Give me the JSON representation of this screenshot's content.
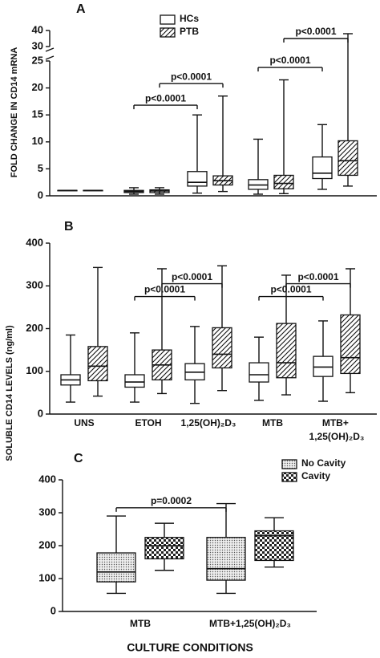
{
  "chart_data": [
    {
      "type": "box",
      "panel": "A",
      "ylabel": "FOLD CHANGE IN CD14 mRNA",
      "ylim": [
        0,
        40
      ],
      "y_break": [
        25,
        30
      ],
      "yticks": [
        0,
        5,
        10,
        15,
        20,
        25,
        30,
        40
      ],
      "series": [
        {
          "name": "HCs",
          "pattern": "none",
          "values": [
            [
              1,
              1,
              1,
              1,
              1
            ],
            [
              0.3,
              0.6,
              0.8,
              1.0,
              1.5
            ],
            [
              0.5,
              1.8,
              2.5,
              4.5,
              15
            ],
            [
              0.3,
              1.2,
              2,
              3,
              10.5
            ],
            [
              1.2,
              3.2,
              4.2,
              7.2,
              13.2
            ]
          ]
        },
        {
          "name": "PTB",
          "pattern": "hatch",
          "values": [
            [
              1,
              1,
              1,
              1,
              1
            ],
            [
              0.3,
              0.6,
              0.9,
              1.1,
              1.5
            ],
            [
              0.8,
              2,
              2.8,
              3.7,
              18.5
            ],
            [
              0.4,
              1.3,
              2.3,
              3.8,
              21.5
            ],
            [
              1.8,
              3.8,
              6.5,
              10.2,
              38
            ]
          ]
        }
      ],
      "brackets": [
        {
          "label": "p<0.0001",
          "y": 16.8
        },
        {
          "label": "p<0.0001",
          "y": 20.8
        },
        {
          "label": "p<0.0001",
          "y": 23.8
        },
        {
          "label": "p<0.0001",
          "y": 35
        }
      ]
    },
    {
      "type": "box",
      "panel": "B",
      "ylabel": "SOLUBLE CD14 LEVELS (ng/ml)",
      "categories": [
        "UNS",
        "ETOH",
        "1,25(OH)₂D₃",
        "MTB",
        "MTB+ 1,25(OH)₂D₃"
      ],
      "ylim": [
        0,
        400
      ],
      "yticks": [
        0,
        100,
        200,
        300,
        400
      ],
      "series": [
        {
          "name": "HCs",
          "pattern": "none",
          "values": [
            [
              28,
              68,
              80,
              92,
              185
            ],
            [
              28,
              63,
              75,
              92,
              190
            ],
            [
              25,
              80,
              98,
              118,
              205
            ],
            [
              32,
              75,
              92,
              120,
              180
            ],
            [
              30,
              88,
              110,
              135,
              218
            ]
          ]
        },
        {
          "name": "PTB",
          "pattern": "hatch",
          "values": [
            [
              42,
              78,
              112,
              158,
              343
            ],
            [
              48,
              80,
              115,
              150,
              340
            ],
            [
              55,
              108,
              140,
              202,
              347
            ],
            [
              45,
              85,
              120,
              212,
              325
            ],
            [
              50,
              95,
              132,
              232,
              340
            ]
          ]
        }
      ],
      "brackets": [
        {
          "label": "p<0.0001",
          "y": 275
        },
        {
          "label": "p<0.0001",
          "y": 305
        },
        {
          "label": "p<0.0001",
          "y": 275
        },
        {
          "label": "p<0.0001",
          "y": 305
        }
      ]
    },
    {
      "type": "box",
      "panel": "C",
      "xlabel": "CULTURE CONDITIONS",
      "categories": [
        "MTB",
        "MTB+1,25(OH)₂D₃"
      ],
      "ylim": [
        0,
        400
      ],
      "yticks": [
        0,
        100,
        200,
        300,
        400
      ],
      "series": [
        {
          "name": "No Cavity",
          "pattern": "dots",
          "values": [
            [
              55,
              90,
              120,
              178,
              290
            ],
            [
              55,
              95,
              130,
              225,
              328
            ]
          ]
        },
        {
          "name": "Cavity",
          "pattern": "checker",
          "values": [
            [
              125,
              160,
              200,
              225,
              268
            ],
            [
              135,
              155,
              230,
              245,
              285
            ]
          ]
        }
      ],
      "brackets": [
        {
          "label": "p=0.0002",
          "y": 315
        }
      ]
    }
  ]
}
